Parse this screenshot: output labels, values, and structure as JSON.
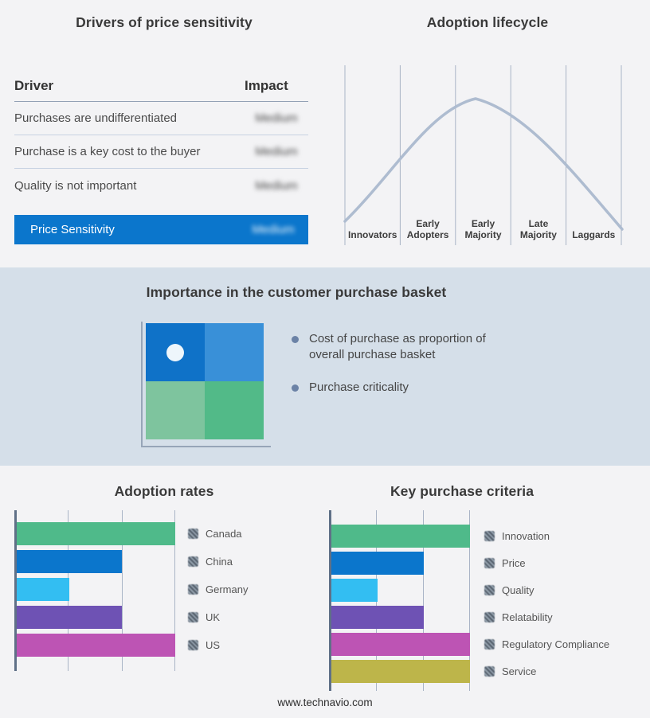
{
  "page": {
    "background": "#f3f3f5",
    "footer": "www.technavio.com"
  },
  "drivers_table": {
    "title": "Drivers of price sensitivity",
    "col_driver": "Driver",
    "col_impact": "Impact",
    "rows": [
      {
        "driver": "Purchases are undifferentiated",
        "impact": "Medium",
        "impact_blurred": true
      },
      {
        "driver": "Purchase is a key cost to the buyer",
        "impact": "Medium",
        "impact_blurred": true
      },
      {
        "driver": "Quality is not important",
        "impact": "Medium",
        "impact_blurred": true
      }
    ],
    "highlight_row": {
      "driver": "Price Sensitivity",
      "impact": "Medium",
      "impact_blurred": true,
      "color": "#0b76cc"
    }
  },
  "lifecycle": {
    "title": "Adoption lifecycle",
    "stages": [
      {
        "lines": [
          "Innovators"
        ]
      },
      {
        "lines": [
          "Early",
          "Adopters"
        ]
      },
      {
        "lines": [
          "Early",
          "Majority"
        ]
      },
      {
        "lines": [
          "Late",
          "Majority"
        ]
      },
      {
        "lines": [
          "Laggards"
        ]
      }
    ],
    "curve_color": "#aebcd0",
    "gridline_color": "#a9b4c6",
    "peak_stage": "Early Majority"
  },
  "purchase_basket": {
    "title": "Importance in the customer purchase basket",
    "band_color": "#d5dfe9",
    "bullets": [
      "Cost of purchase as proportion of overall purchase basket",
      "Purchase criticality"
    ],
    "quadrant_colors": {
      "top_left": "#0f72c8",
      "top_right": "#3990d8",
      "bottom_left": "#7ec49e",
      "bottom_right": "#52ba88"
    },
    "marker": "white dot in top-left quadrant"
  },
  "chart_data": [
    {
      "type": "bar",
      "orientation": "horizontal",
      "title": "Adoption rates",
      "categories": [
        "Canada",
        "China",
        "Germany",
        "UK",
        "US"
      ],
      "values": [
        3,
        2,
        1,
        2,
        3
      ],
      "xlim": [
        0,
        3
      ],
      "grid": true,
      "legend_position": "right",
      "colors": [
        "#4fba8a",
        "#0b76cc",
        "#33bef2",
        "#6e52b4",
        "#bd54b4"
      ]
    },
    {
      "type": "bar",
      "orientation": "horizontal",
      "title": "Key purchase criteria",
      "categories": [
        "Innovation",
        "Price",
        "Quality",
        "Relatability",
        "Regulatory Compliance",
        "Service"
      ],
      "values": [
        3,
        2,
        1,
        2,
        3,
        3
      ],
      "xlim": [
        0,
        3
      ],
      "grid": true,
      "legend_position": "right",
      "colors": [
        "#4fba8a",
        "#0b76cc",
        "#33bef2",
        "#6e52b4",
        "#bd54b4",
        "#bdb54a"
      ]
    }
  ]
}
